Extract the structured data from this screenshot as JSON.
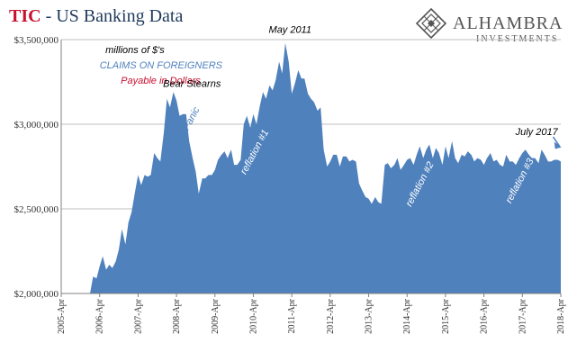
{
  "header": {
    "title_tic": "TIC",
    "title_rest": " - US Banking Data"
  },
  "logo": {
    "name": "ALHAMBRA",
    "sub": "INVESTMENTS",
    "icon": "diamond-lattice-icon"
  },
  "chart_data": {
    "type": "area",
    "title": "TIC - US Banking Data",
    "ylabel": "",
    "xlabel": "",
    "ylim": [
      2000000,
      3500000
    ],
    "xlim": [
      2005.25,
      2018.25
    ],
    "grid": "horizontal",
    "color": "#4f81bd",
    "y_ticks": [
      {
        "value": 2000000,
        "label": "$2,000,000"
      },
      {
        "value": 2500000,
        "label": "$2,500,000"
      },
      {
        "value": 3000000,
        "label": "$3,000,000"
      },
      {
        "value": 3500000,
        "label": "$3,500,000"
      }
    ],
    "x_ticks": [
      {
        "value": 2005.25,
        "label": "2005-Apr"
      },
      {
        "value": 2006.25,
        "label": "2006-Apr"
      },
      {
        "value": 2007.25,
        "label": "2007-Apr"
      },
      {
        "value": 2008.25,
        "label": "2008-Apr"
      },
      {
        "value": 2009.25,
        "label": "2009-Apr"
      },
      {
        "value": 2010.25,
        "label": "2010-Apr"
      },
      {
        "value": 2011.25,
        "label": "2011-Apr"
      },
      {
        "value": 2012.25,
        "label": "2012-Apr"
      },
      {
        "value": 2013.25,
        "label": "2013-Apr"
      },
      {
        "value": 2014.25,
        "label": "2014-Apr"
      },
      {
        "value": 2015.25,
        "label": "2015-Apr"
      },
      {
        "value": 2016.25,
        "label": "2016-Apr"
      },
      {
        "value": 2017.25,
        "label": "2017-Apr"
      },
      {
        "value": 2018.25,
        "label": "2018-Apr"
      }
    ],
    "series": [
      {
        "x": [
          2005.25,
          2006.0,
          2006.08,
          2006.17,
          2006.25,
          2006.33,
          2006.42,
          2006.5,
          2006.58,
          2006.67,
          2006.75,
          2006.83,
          2006.92,
          2007.0,
          2007.08,
          2007.17,
          2007.25,
          2007.33,
          2007.42,
          2007.5,
          2007.58,
          2007.67,
          2007.75,
          2007.83,
          2007.92,
          2008.0,
          2008.08,
          2008.17,
          2008.25,
          2008.33,
          2008.42,
          2008.5,
          2008.58,
          2008.67,
          2008.75,
          2008.83,
          2008.92,
          2009.0,
          2009.08,
          2009.17,
          2009.25,
          2009.33,
          2009.42,
          2009.5,
          2009.58,
          2009.67,
          2009.75,
          2009.83,
          2009.92,
          2010.0,
          2010.08,
          2010.17,
          2010.25,
          2010.33,
          2010.42,
          2010.5,
          2010.58,
          2010.67,
          2010.75,
          2010.83,
          2010.92,
          2011.0,
          2011.08,
          2011.17,
          2011.25,
          2011.33,
          2011.42,
          2011.5,
          2011.58,
          2011.67,
          2011.75,
          2011.83,
          2011.92,
          2012.0,
          2012.08,
          2012.17,
          2012.25,
          2012.33,
          2012.42,
          2012.5,
          2012.58,
          2012.67,
          2012.75,
          2012.83,
          2012.92,
          2013.0,
          2013.08,
          2013.17,
          2013.25,
          2013.33,
          2013.42,
          2013.5,
          2013.58,
          2013.67,
          2013.75,
          2013.83,
          2013.92,
          2014.0,
          2014.08,
          2014.17,
          2014.25,
          2014.33,
          2014.42,
          2014.5,
          2014.58,
          2014.67,
          2014.75,
          2014.83,
          2014.92,
          2015.0,
          2015.08,
          2015.17,
          2015.25,
          2015.33,
          2015.42,
          2015.5,
          2015.58,
          2015.67,
          2015.75,
          2015.83,
          2015.92,
          2016.0,
          2016.08,
          2016.17,
          2016.25,
          2016.33,
          2016.42,
          2016.5,
          2016.58,
          2016.67,
          2016.75,
          2016.83,
          2016.92,
          2017.0,
          2017.08,
          2017.17,
          2017.25,
          2017.33,
          2017.42,
          2017.5,
          2017.58,
          2017.67,
          2017.75,
          2017.83,
          2017.92,
          2018.0,
          2018.08,
          2018.17,
          2018.25
        ],
        "y": [
          2000000,
          2000000,
          2100000,
          2090000,
          2160000,
          2220000,
          2140000,
          2170000,
          2150000,
          2190000,
          2260000,
          2380000,
          2290000,
          2420000,
          2480000,
          2600000,
          2700000,
          2640000,
          2700000,
          2690000,
          2700000,
          2830000,
          2800000,
          2780000,
          2950000,
          3150000,
          3100000,
          3190000,
          3140000,
          3050000,
          3060000,
          3060000,
          2900000,
          2800000,
          2720000,
          2590000,
          2680000,
          2680000,
          2700000,
          2700000,
          2730000,
          2790000,
          2820000,
          2840000,
          2800000,
          2850000,
          2760000,
          2760000,
          2790000,
          3000000,
          3050000,
          2980000,
          3060000,
          3000000,
          3110000,
          3190000,
          3150000,
          3230000,
          3200000,
          3260000,
          3370000,
          3300000,
          3480000,
          3370000,
          3180000,
          3240000,
          3320000,
          3270000,
          3270000,
          3180000,
          3150000,
          3130000,
          3080000,
          3100000,
          2850000,
          2750000,
          2780000,
          2820000,
          2820000,
          2750000,
          2810000,
          2810000,
          2780000,
          2790000,
          2780000,
          2650000,
          2610000,
          2570000,
          2560000,
          2530000,
          2570000,
          2540000,
          2530000,
          2760000,
          2770000,
          2740000,
          2760000,
          2800000,
          2730000,
          2760000,
          2790000,
          2800000,
          2760000,
          2820000,
          2870000,
          2800000,
          2850000,
          2880000,
          2800000,
          2860000,
          2830000,
          2760000,
          2870000,
          2800000,
          2900000,
          2800000,
          2770000,
          2820000,
          2810000,
          2840000,
          2820000,
          2780000,
          2800000,
          2790000,
          2760000,
          2800000,
          2830000,
          2780000,
          2790000,
          2760000,
          2750000,
          2820000,
          2780000,
          2780000,
          2760000,
          2800000,
          2830000,
          2850000,
          2820000,
          2800000,
          2800000,
          2770000,
          2850000,
          2820000,
          2780000,
          2780000,
          2790000,
          2790000,
          2780000
        ]
      }
    ],
    "annotations": [
      {
        "text": "millions of $'s",
        "color": "#000000",
        "x": 2006.4,
        "y": 3420000,
        "rotate": 0
      },
      {
        "text": "CLAIMS ON FOREIGNERS",
        "color": "#4f81bd",
        "x": 2006.25,
        "y": 3330000,
        "rotate": 0
      },
      {
        "text": "Payable in Dollars",
        "color": "#c8102e",
        "x": 2006.8,
        "y": 3240000,
        "rotate": 0
      },
      {
        "text": "Bear Stearns",
        "color": "#000000",
        "x": 2007.9,
        "y": 3220000,
        "rotate": 0
      },
      {
        "text": "May 2011",
        "color": "#000000",
        "x": 2010.65,
        "y": 3540000,
        "rotate": 0
      },
      {
        "text": "Panic",
        "color": "#4f81bd",
        "x": 2008.55,
        "y": 2960000,
        "rotate": -62
      },
      {
        "text": "reflation #1",
        "color": "#ffffff",
        "x": 2010.05,
        "y": 2700000,
        "rotate": -62
      },
      {
        "text": "reflation #2",
        "color": "#ffffff",
        "x": 2014.35,
        "y": 2510000,
        "rotate": -62
      },
      {
        "text": "reflation #3",
        "color": "#ffffff",
        "x": 2016.95,
        "y": 2530000,
        "rotate": -62
      },
      {
        "text": "July 2017",
        "color": "#000000",
        "x": 2017.07,
        "y": 2935000,
        "rotate": 0
      }
    ]
  }
}
